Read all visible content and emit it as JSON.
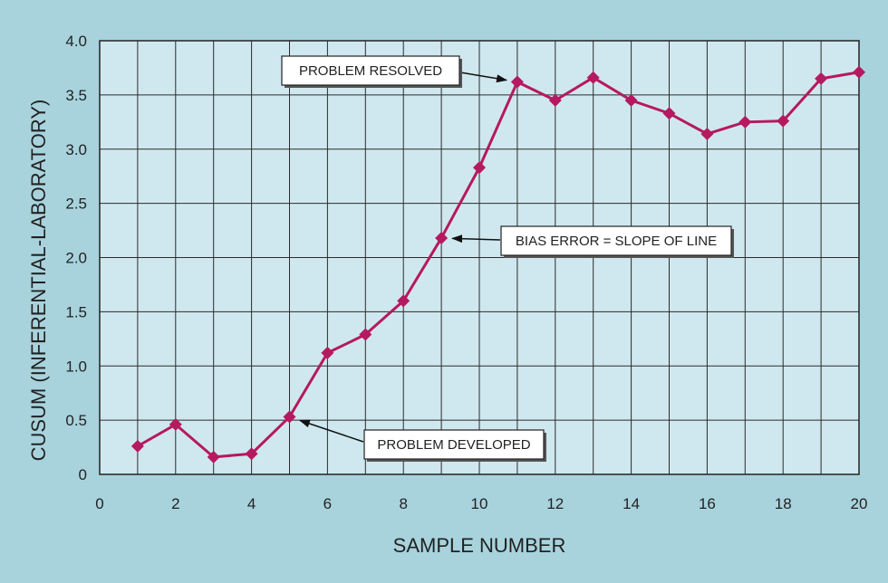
{
  "chart_data": {
    "type": "line",
    "title": "",
    "xlabel": "SAMPLE NUMBER",
    "ylabel": "CUSUM (INFERENTIAL-LABORATORY)",
    "xlim": [
      0,
      20
    ],
    "ylim": [
      0,
      4.0
    ],
    "x_ticks": [
      "0",
      "2",
      "4",
      "6",
      "8",
      "10",
      "12",
      "14",
      "16",
      "18",
      "20"
    ],
    "y_ticks": [
      "0",
      "0.5",
      "1.0",
      "1.5",
      "2.0",
      "2.5",
      "3.0",
      "3.5",
      "4.0"
    ],
    "grid": true,
    "series": [
      {
        "color": "#b5195f",
        "marker": "diamond",
        "x": [
          1,
          2,
          3,
          4,
          5,
          6,
          7,
          8,
          9,
          10,
          11,
          12,
          13,
          14,
          15,
          16,
          17,
          18,
          19,
          20
        ],
        "y": [
          0.26,
          0.46,
          0.16,
          0.19,
          0.53,
          1.12,
          1.29,
          1.6,
          2.18,
          2.83,
          3.62,
          3.45,
          3.66,
          3.45,
          3.33,
          3.14,
          3.25,
          3.26,
          3.65,
          3.71
        ]
      }
    ],
    "annotations": [
      {
        "text": "PROBLEM RESOLVED",
        "target_x": 11,
        "target_y": 3.62
      },
      {
        "text": "BIAS ERROR = SLOPE OF LINE",
        "target_x": 9,
        "target_y": 2.18
      },
      {
        "text": "PROBLEM DEVELOPED",
        "target_x": 5,
        "target_y": 0.53
      }
    ],
    "colors": {
      "background": "#a8d3dd",
      "plot_area": "#cfe8ef",
      "line": "#b5195f"
    }
  }
}
